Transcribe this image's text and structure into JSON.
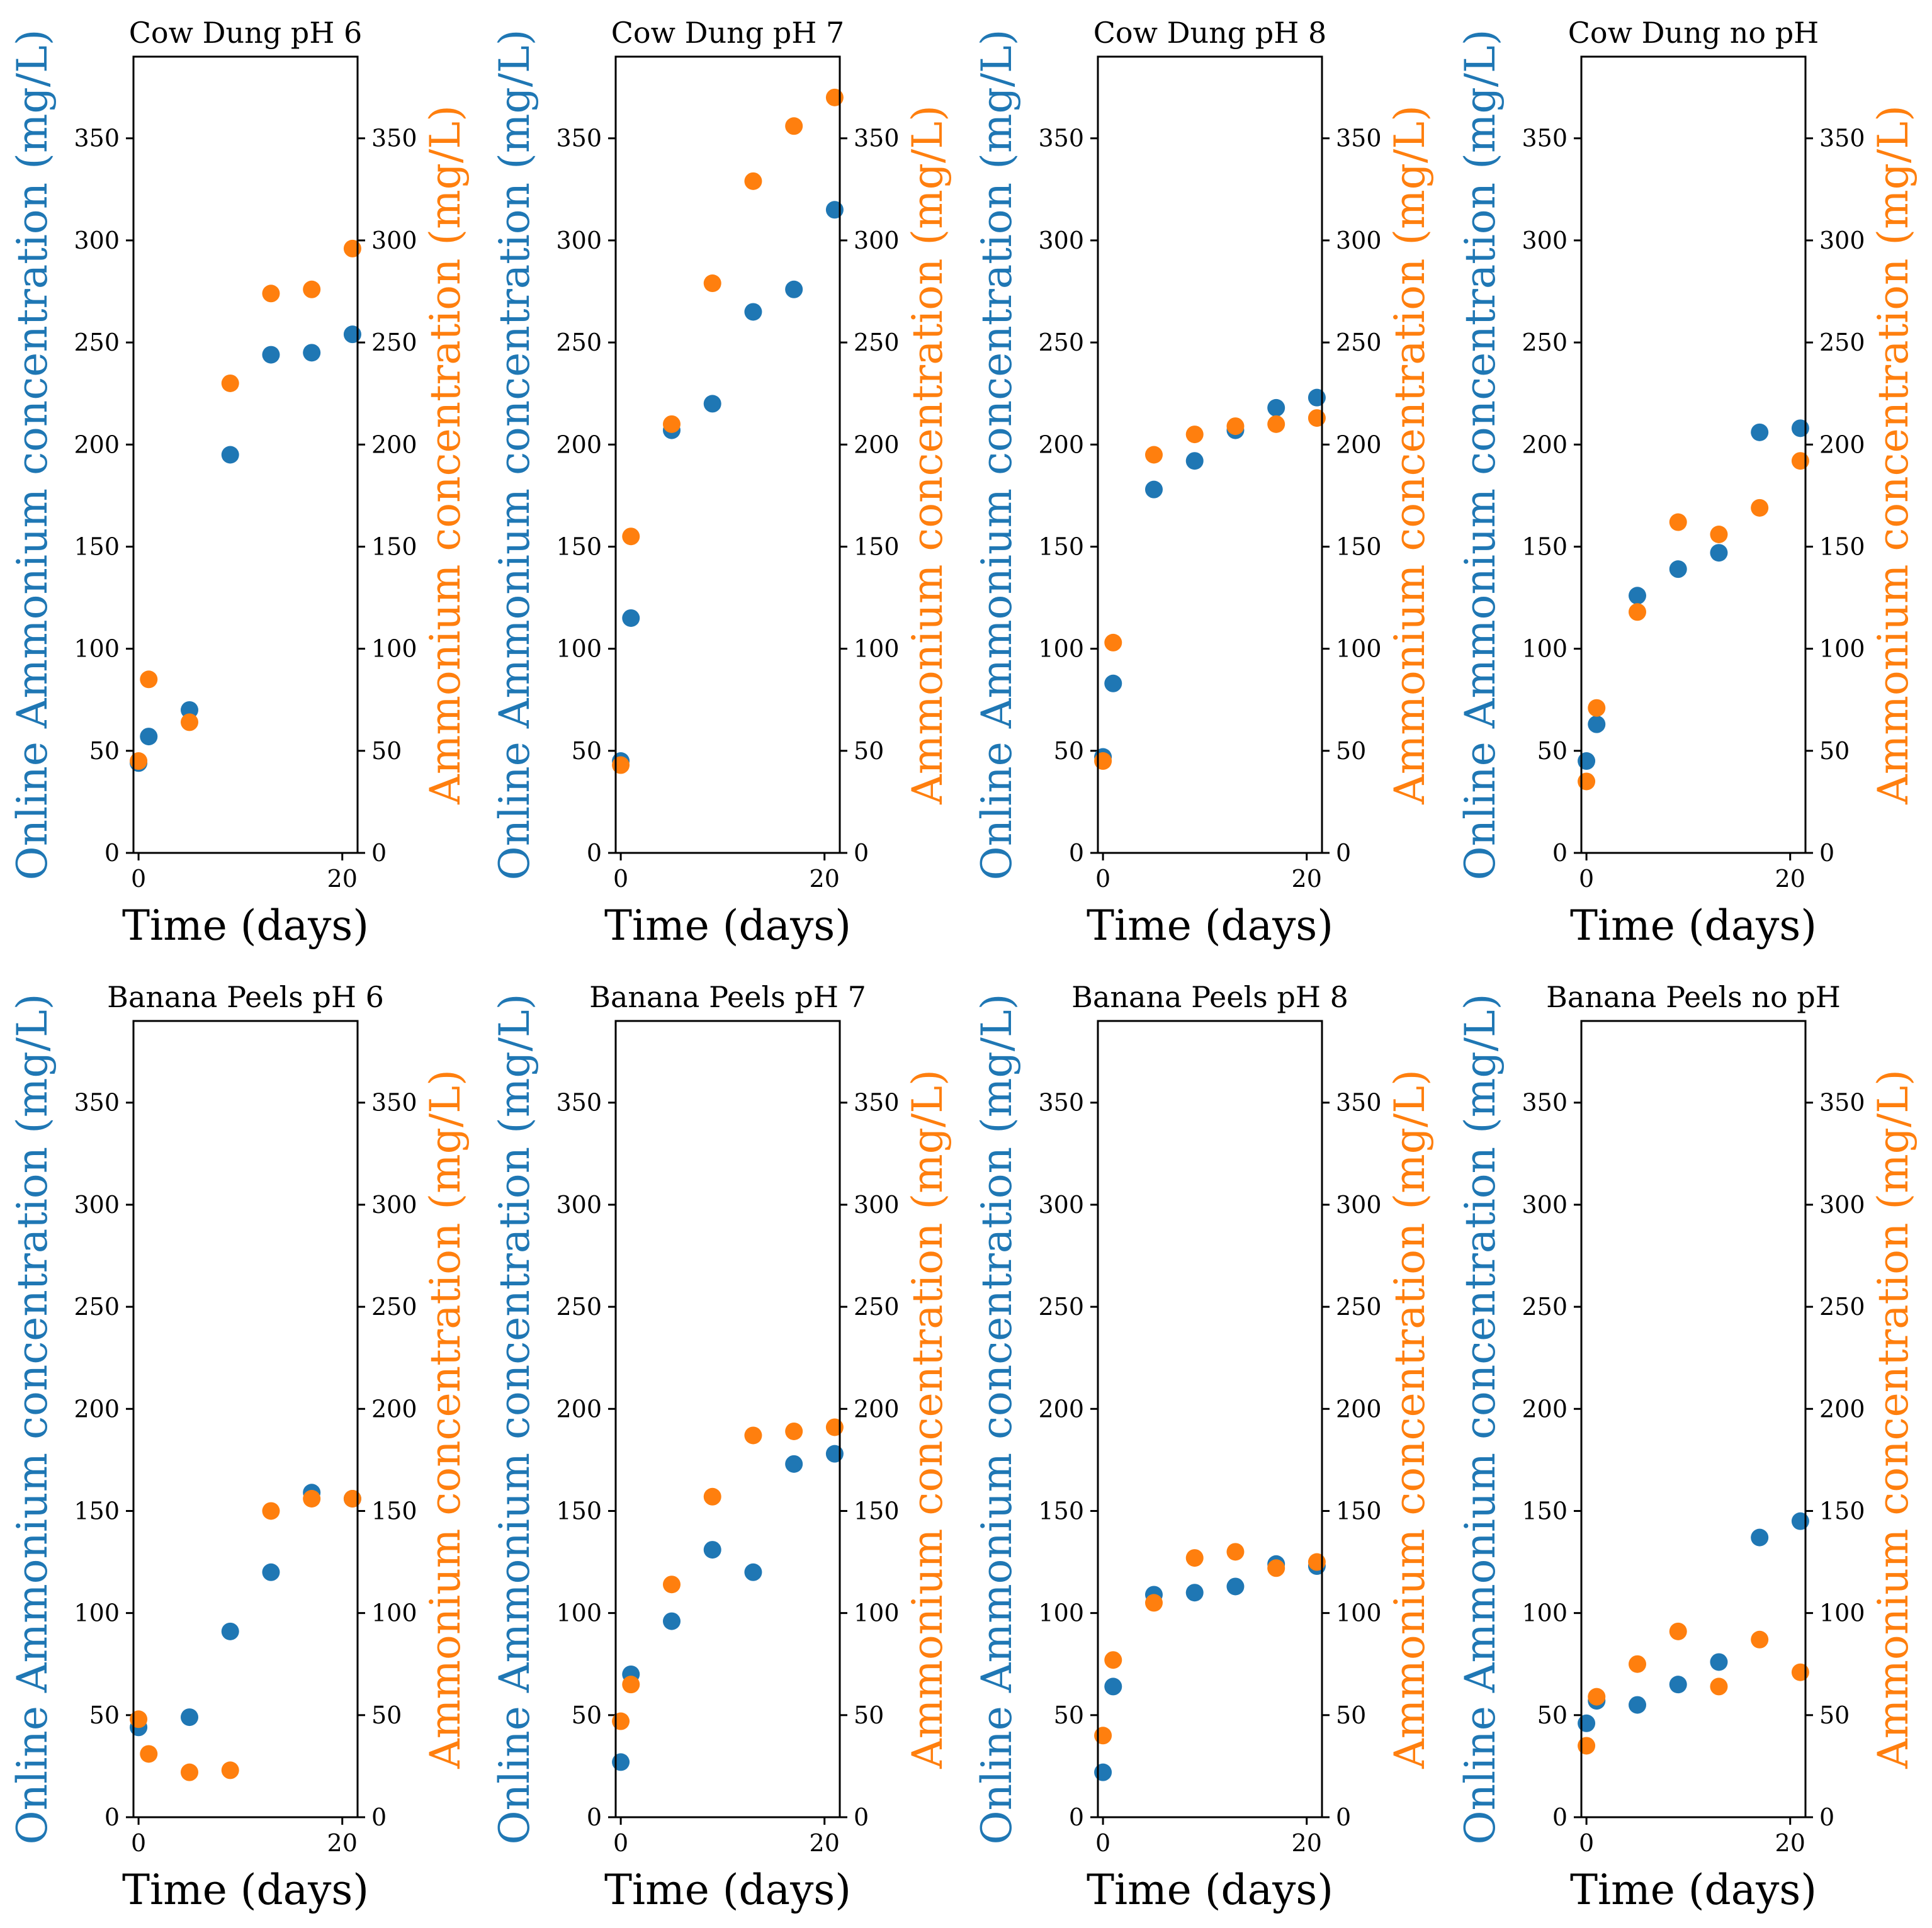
{
  "colors": {
    "online": "#1f77b4",
    "ammonium": "#ff7f0e",
    "axis": "#000000"
  },
  "labels": {
    "xlabel": "Time (days)",
    "ylabel_left": "Online Ammonium concentration (mg/L)",
    "ylabel_right": "Ammonium concentration (mg/L)"
  },
  "chart_data": [
    {
      "type": "scatter",
      "title": "Cow Dung pH 6",
      "xlabel": "Time (days)",
      "ylabel": "Online Ammonium concentration (mg/L)",
      "ylabel_right": "Ammonium concentration (mg/L)",
      "xlim": [
        -0.5,
        21.5
      ],
      "ylim": [
        0,
        390
      ],
      "xticks": [
        0,
        20
      ],
      "yticks": [
        0,
        50,
        100,
        150,
        200,
        250,
        300,
        350
      ],
      "series": [
        {
          "name": "Online Ammonium concentration",
          "axis": "left",
          "x": [
            0,
            1,
            5,
            9,
            13,
            17,
            21
          ],
          "y": [
            44,
            57,
            70,
            195,
            244,
            245,
            254
          ]
        },
        {
          "name": "Ammonium concentration",
          "axis": "right",
          "x": [
            0,
            1,
            5,
            9,
            13,
            17,
            21
          ],
          "y": [
            45,
            85,
            64,
            230,
            274,
            276,
            296
          ]
        }
      ]
    },
    {
      "type": "scatter",
      "title": "Cow Dung pH 7",
      "xlabel": "Time (days)",
      "ylabel": "Online Ammonium concentration (mg/L)",
      "ylabel_right": "Ammonium concentration (mg/L)",
      "xlim": [
        -0.5,
        21.5
      ],
      "ylim": [
        0,
        390
      ],
      "xticks": [
        0,
        20
      ],
      "yticks": [
        0,
        50,
        100,
        150,
        200,
        250,
        300,
        350
      ],
      "series": [
        {
          "name": "Online Ammonium concentration",
          "axis": "left",
          "x": [
            0,
            1,
            5,
            9,
            13,
            17,
            21
          ],
          "y": [
            45,
            115,
            207,
            220,
            265,
            276,
            315
          ]
        },
        {
          "name": "Ammonium concentration",
          "axis": "right",
          "x": [
            0,
            1,
            5,
            9,
            13,
            17,
            21
          ],
          "y": [
            43,
            155,
            210,
            279,
            329,
            356,
            370
          ]
        }
      ]
    },
    {
      "type": "scatter",
      "title": "Cow Dung pH 8",
      "xlabel": "Time (days)",
      "ylabel": "Online Ammonium concentration (mg/L)",
      "ylabel_right": "Ammonium concentration (mg/L)",
      "xlim": [
        -0.5,
        21.5
      ],
      "ylim": [
        0,
        390
      ],
      "xticks": [
        0,
        20
      ],
      "yticks": [
        0,
        50,
        100,
        150,
        200,
        250,
        300,
        350
      ],
      "series": [
        {
          "name": "Online Ammonium concentration",
          "axis": "left",
          "x": [
            0,
            1,
            5,
            9,
            13,
            17,
            21
          ],
          "y": [
            47,
            83,
            178,
            192,
            207,
            218,
            223
          ]
        },
        {
          "name": "Ammonium concentration",
          "axis": "right",
          "x": [
            0,
            1,
            5,
            9,
            13,
            17,
            21
          ],
          "y": [
            45,
            103,
            195,
            205,
            209,
            210,
            213
          ]
        }
      ]
    },
    {
      "type": "scatter",
      "title": "Cow Dung no pH",
      "xlabel": "Time (days)",
      "ylabel": "Online Ammonium concentration (mg/L)",
      "ylabel_right": "Ammonium concentration (mg/L)",
      "xlim": [
        -0.5,
        21.5
      ],
      "ylim": [
        0,
        390
      ],
      "xticks": [
        0,
        20
      ],
      "yticks": [
        0,
        50,
        100,
        150,
        200,
        250,
        300,
        350
      ],
      "series": [
        {
          "name": "Online Ammonium concentration",
          "axis": "left",
          "x": [
            0,
            1,
            5,
            9,
            13,
            17,
            21
          ],
          "y": [
            45,
            63,
            126,
            139,
            147,
            206,
            208
          ]
        },
        {
          "name": "Ammonium concentration",
          "axis": "right",
          "x": [
            0,
            1,
            5,
            9,
            13,
            17,
            21
          ],
          "y": [
            35,
            71,
            118,
            162,
            156,
            169,
            192
          ]
        }
      ]
    },
    {
      "type": "scatter",
      "title": "Banana Peels pH 6",
      "xlabel": "Time (days)",
      "ylabel": "Online Ammonium concentration (mg/L)",
      "ylabel_right": "Ammonium concentration (mg/L)",
      "xlim": [
        -0.5,
        21.5
      ],
      "ylim": [
        0,
        390
      ],
      "xticks": [
        0,
        20
      ],
      "yticks": [
        0,
        50,
        100,
        150,
        200,
        250,
        300,
        350
      ],
      "series": [
        {
          "name": "Online Ammonium concentration",
          "axis": "left",
          "x": [
            0,
            5,
            9,
            13,
            17,
            21
          ],
          "y": [
            44,
            49,
            91,
            120,
            159,
            156
          ]
        },
        {
          "name": "Ammonium concentration",
          "axis": "right",
          "x": [
            0,
            1,
            5,
            9,
            13,
            17,
            21
          ],
          "y": [
            48,
            31,
            22,
            23,
            150,
            156,
            156
          ]
        }
      ]
    },
    {
      "type": "scatter",
      "title": "Banana Peels pH 7",
      "xlabel": "Time (days)",
      "ylabel": "Online Ammonium concentration (mg/L)",
      "ylabel_right": "Ammonium concentration (mg/L)",
      "xlim": [
        -0.5,
        21.5
      ],
      "ylim": [
        0,
        390
      ],
      "xticks": [
        0,
        20
      ],
      "yticks": [
        0,
        50,
        100,
        150,
        200,
        250,
        300,
        350
      ],
      "series": [
        {
          "name": "Online Ammonium concentration",
          "axis": "left",
          "x": [
            0,
            1,
            5,
            9,
            13,
            17,
            21
          ],
          "y": [
            27,
            70,
            96,
            131,
            120,
            173,
            178
          ]
        },
        {
          "name": "Ammonium concentration",
          "axis": "right",
          "x": [
            0,
            1,
            5,
            9,
            13,
            17,
            21
          ],
          "y": [
            47,
            65,
            114,
            157,
            187,
            189,
            191
          ]
        }
      ]
    },
    {
      "type": "scatter",
      "title": "Banana Peels pH 8",
      "xlabel": "Time (days)",
      "ylabel": "Online Ammonium concentration (mg/L)",
      "ylabel_right": "Ammonium concentration (mg/L)",
      "xlim": [
        -0.5,
        21.5
      ],
      "ylim": [
        0,
        390
      ],
      "xticks": [
        0,
        20
      ],
      "yticks": [
        0,
        50,
        100,
        150,
        200,
        250,
        300,
        350
      ],
      "series": [
        {
          "name": "Online Ammonium concentration",
          "axis": "left",
          "x": [
            0,
            1,
            5,
            9,
            13,
            17,
            21
          ],
          "y": [
            22,
            64,
            109,
            110,
            113,
            124,
            123
          ]
        },
        {
          "name": "Ammonium concentration",
          "axis": "right",
          "x": [
            0,
            1,
            5,
            9,
            13,
            17,
            21
          ],
          "y": [
            40,
            77,
            105,
            127,
            130,
            122,
            125
          ]
        }
      ]
    },
    {
      "type": "scatter",
      "title": "Banana Peels no pH",
      "xlabel": "Time (days)",
      "ylabel": "Online Ammonium concentration (mg/L)",
      "ylabel_right": "Ammonium concentration (mg/L)",
      "xlim": [
        -0.5,
        21.5
      ],
      "ylim": [
        0,
        390
      ],
      "xticks": [
        0,
        20
      ],
      "yticks": [
        0,
        50,
        100,
        150,
        200,
        250,
        300,
        350
      ],
      "series": [
        {
          "name": "Online Ammonium concentration",
          "axis": "left",
          "x": [
            0,
            1,
            5,
            9,
            13,
            17,
            21
          ],
          "y": [
            46,
            57,
            55,
            65,
            76,
            137,
            145
          ]
        },
        {
          "name": "Ammonium concentration",
          "axis": "right",
          "x": [
            0,
            1,
            5,
            9,
            13,
            17,
            21
          ],
          "y": [
            35,
            59,
            75,
            91,
            64,
            87,
            71
          ]
        }
      ]
    }
  ]
}
